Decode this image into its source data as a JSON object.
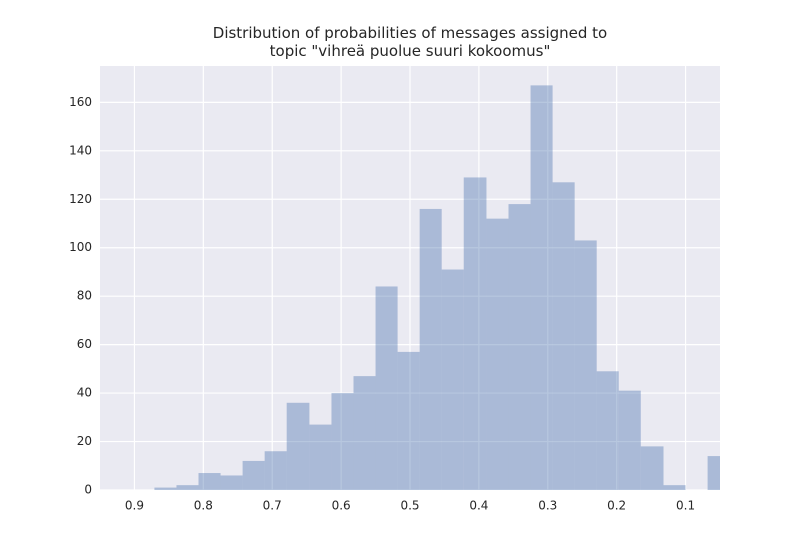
{
  "chart_data": {
    "type": "histogram",
    "title": "Distribution of probabilities of messages assigned to\ntopic \"vihreä puolue suuri kokoomus\"",
    "bins": [
      0.036,
      0.068,
      0.1,
      0.132,
      0.165,
      0.197,
      0.229,
      0.261,
      0.293,
      0.325,
      0.357,
      0.389,
      0.422,
      0.454,
      0.486,
      0.518,
      0.55,
      0.582,
      0.614,
      0.646,
      0.679,
      0.711,
      0.743,
      0.775,
      0.807,
      0.839,
      0.871
    ],
    "values": [
      14,
      0,
      2,
      18,
      41,
      49,
      103,
      127,
      167,
      118,
      112,
      129,
      91,
      116,
      57,
      84,
      47,
      40,
      27,
      36,
      16,
      12,
      6,
      7,
      2,
      1
    ],
    "color": "#4c72b0",
    "alpha": 0.4,
    "xlim": [
      0.95,
      0.05
    ],
    "xticks": [
      0.9,
      0.8,
      0.7,
      0.6,
      0.5,
      0.4,
      0.3,
      0.2,
      0.1
    ],
    "ylim": [
      0,
      175
    ],
    "yticks": [
      0,
      20,
      40,
      60,
      80,
      100,
      120,
      140,
      160
    ],
    "grid": true
  }
}
